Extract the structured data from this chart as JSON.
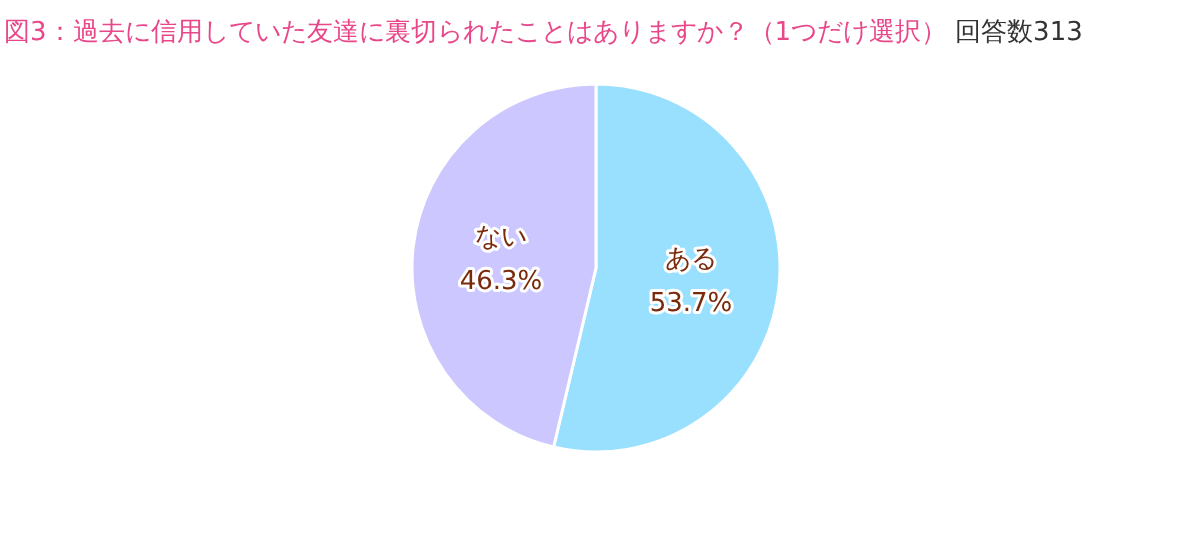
{
  "chart_data": {
    "type": "pie",
    "title": "図3：過去に信用していた友達に裏切られたことはありますか？（1つだけ選択）",
    "subtitle": "回答数313",
    "categories": [
      "ある",
      "ない"
    ],
    "values": [
      53.7,
      46.3
    ],
    "colors": [
      "#99e0ff",
      "#ccc8ff"
    ],
    "value_labels": [
      "53.7%",
      "46.3%"
    ],
    "legend": false
  }
}
